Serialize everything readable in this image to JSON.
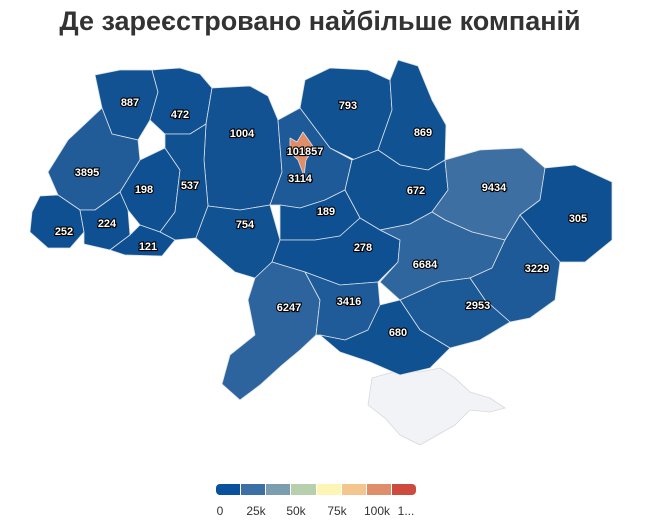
{
  "title": "Де зареєстровано найбільше компаній",
  "legend": {
    "ticks": [
      "0",
      "25k",
      "50k",
      "75k",
      "100k",
      "1..."
    ],
    "colors": [
      "#08519c",
      "#3b6fa5",
      "#7a9eb0",
      "#b8cfae",
      "#fdf5b4",
      "#f3c68f",
      "#e08d6a",
      "#cf4a3e"
    ]
  },
  "colors": {
    "low": "#0d4f91",
    "kyiv_city": "#e08d6a",
    "crimea": "#f2f3f7"
  },
  "chart_data": {
    "type": "choropleth",
    "title": "Де зареєстровано найбільше компаній",
    "value_range": [
      0,
      101857
    ],
    "regions": [
      {
        "id": "volyn",
        "value": 887,
        "label": "887"
      },
      {
        "id": "rivne",
        "value": 472,
        "label": "472"
      },
      {
        "id": "zhytomyr",
        "value": 1004,
        "label": "1004"
      },
      {
        "id": "kyiv-city",
        "value": 101857,
        "label": "101857"
      },
      {
        "id": "chernihiv",
        "value": 793,
        "label": "793"
      },
      {
        "id": "sumy",
        "value": 869,
        "label": "869"
      },
      {
        "id": "lviv",
        "value": 3895,
        "label": "3895"
      },
      {
        "id": "ternopil",
        "value": 198,
        "label": "198"
      },
      {
        "id": "khmelnytskyi",
        "value": 537,
        "label": "537"
      },
      {
        "id": "kyiv-oblast",
        "value": 3114,
        "label": "3114"
      },
      {
        "id": "poltava",
        "value": 672,
        "label": "672"
      },
      {
        "id": "kharkiv",
        "value": 9434,
        "label": "9434"
      },
      {
        "id": "luhansk",
        "value": 305,
        "label": "305"
      },
      {
        "id": "zakarpattia",
        "value": 252,
        "label": "252"
      },
      {
        "id": "ivano-frankivsk",
        "value": 224,
        "label": "224"
      },
      {
        "id": "chernivtsi",
        "value": 121,
        "label": "121"
      },
      {
        "id": "vinnytsia",
        "value": 754,
        "label": "754"
      },
      {
        "id": "cherkasy",
        "value": 189,
        "label": "189"
      },
      {
        "id": "kirovohrad",
        "value": 278,
        "label": "278"
      },
      {
        "id": "dnipropetrovsk",
        "value": 6684,
        "label": "6684"
      },
      {
        "id": "donetsk",
        "value": 3229,
        "label": "3229"
      },
      {
        "id": "odesa",
        "value": 6247,
        "label": "6247"
      },
      {
        "id": "mykolaiv",
        "value": 3416,
        "label": "3416"
      },
      {
        "id": "zaporizhzhia",
        "value": 2953,
        "label": "2953"
      },
      {
        "id": "kherson",
        "value": 680,
        "label": "680"
      }
    ]
  }
}
